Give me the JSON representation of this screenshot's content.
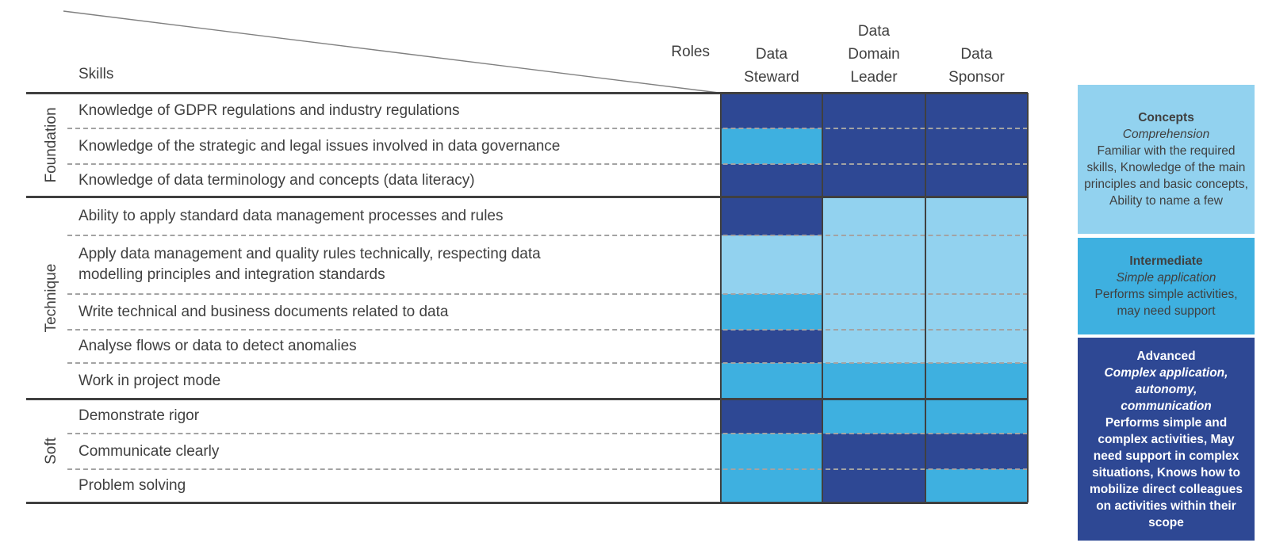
{
  "colors": {
    "concepts": "#92D2EF",
    "intermediate": "#3EB0E0",
    "advanced": "#2E4894",
    "advanced_text": "#FFFFFF",
    "text": "#404040",
    "solid_line": "#404040",
    "dashed_line": "#A3A3A3",
    "diagonal_line": "#808080"
  },
  "header": {
    "skills_label": "Skills",
    "roles_label": "Roles",
    "columns": [
      "Data\nSteward",
      "Data\nDomain\nLeader",
      "Data\nSponsor"
    ]
  },
  "chart_data": {
    "type": "heatmap",
    "title": "",
    "xlabel": "Roles",
    "ylabel": "Skills",
    "legend_position": "right",
    "x_categories": [
      "Data Steward",
      "Data Domain Leader",
      "Data Sponsor"
    ],
    "levels": [
      "concepts",
      "intermediate",
      "advanced"
    ],
    "groups": [
      {
        "name": "Foundation",
        "rows": [
          {
            "skill": "Knowledge of GDPR regulations and industry regulations",
            "levels": [
              "advanced",
              "advanced",
              "advanced"
            ]
          },
          {
            "skill": "Knowledge of the strategic and legal issues involved in data governance",
            "levels": [
              "intermediate",
              "advanced",
              "advanced"
            ]
          },
          {
            "skill": "Knowledge of data terminology and concepts (data literacy)",
            "levels": [
              "advanced",
              "advanced",
              "advanced"
            ]
          }
        ]
      },
      {
        "name": "Technique",
        "rows": [
          {
            "skill": "Ability to apply standard data management processes and rules",
            "levels": [
              "advanced",
              "concepts",
              "concepts"
            ]
          },
          {
            "skill": "Apply data management and quality rules technically, respecting data\nmodelling principles and integration standards",
            "levels": [
              "concepts",
              "concepts",
              "concepts"
            ]
          },
          {
            "skill": "Write technical and business documents related to data",
            "levels": [
              "intermediate",
              "concepts",
              "concepts"
            ]
          },
          {
            "skill": "Analyse flows or data to detect anomalies",
            "levels": [
              "advanced",
              "concepts",
              "concepts"
            ]
          },
          {
            "skill": "Work in project mode",
            "levels": [
              "intermediate",
              "intermediate",
              "intermediate"
            ]
          }
        ]
      },
      {
        "name": "Soft",
        "rows": [
          {
            "skill": "Demonstrate rigor",
            "levels": [
              "advanced",
              "intermediate",
              "intermediate"
            ]
          },
          {
            "skill": "Communicate clearly",
            "levels": [
              "intermediate",
              "advanced",
              "advanced"
            ]
          },
          {
            "skill": "Problem solving",
            "levels": [
              "intermediate",
              "advanced",
              "intermediate"
            ]
          }
        ]
      }
    ]
  },
  "legend": [
    {
      "level": "concepts",
      "title": "Concepts",
      "subtitle": "Comprehension",
      "description": "Familiar with the required skills, Knowledge of the main principles and basic concepts, Ability to name a few"
    },
    {
      "level": "intermediate",
      "title": "Intermediate",
      "subtitle": "Simple application",
      "description": "Performs simple activities, may need support"
    },
    {
      "level": "advanced",
      "title": "Advanced",
      "subtitle": "Complex application,\nautonomy,\ncommunication",
      "description": "Performs simple and complex activities, May need support in complex situations, Knows how to mobilize direct colleagues on activities within their scope"
    }
  ]
}
